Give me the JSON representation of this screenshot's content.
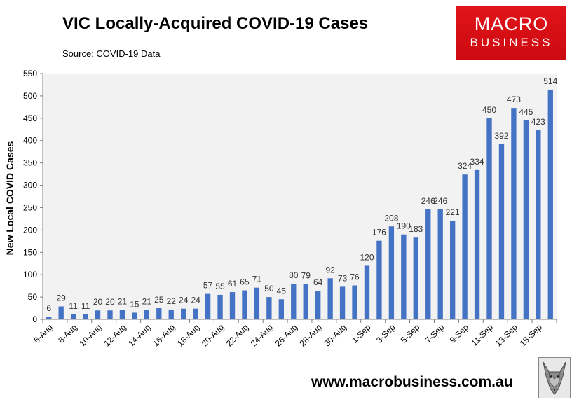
{
  "header": {
    "title": "VIC Locally-Acquired COVID-19 Cases",
    "source": "Source: COVID-19 Data"
  },
  "logo": {
    "line1": "MACRO",
    "line2": "BUSINESS"
  },
  "footer": {
    "website": "www.macrobusiness.com.au"
  },
  "colors": {
    "bar": "#4472c4",
    "plot_bg": "#f2f2f2",
    "logo_bg": "#e0141a"
  },
  "chart_data": {
    "type": "bar",
    "title": "VIC Locally-Acquired COVID-19 Cases",
    "ylabel": "New Local COVID Cases",
    "xlabel": "",
    "ylim": [
      0,
      550
    ],
    "yticks": [
      0,
      50,
      100,
      150,
      200,
      250,
      300,
      350,
      400,
      450,
      500,
      550
    ],
    "categories": [
      "6-Aug",
      "7-Aug",
      "8-Aug",
      "9-Aug",
      "10-Aug",
      "11-Aug",
      "12-Aug",
      "13-Aug",
      "14-Aug",
      "15-Aug",
      "16-Aug",
      "17-Aug",
      "18-Aug",
      "19-Aug",
      "20-Aug",
      "21-Aug",
      "22-Aug",
      "23-Aug",
      "24-Aug",
      "25-Aug",
      "26-Aug",
      "27-Aug",
      "28-Aug",
      "29-Aug",
      "30-Aug",
      "31-Aug",
      "1-Sep",
      "2-Sep",
      "3-Sep",
      "4-Sep",
      "5-Sep",
      "6-Sep",
      "7-Sep",
      "8-Sep",
      "9-Sep",
      "10-Sep",
      "11-Sep",
      "12-Sep",
      "13-Sep",
      "14-Sep",
      "15-Sep",
      "16-Sep"
    ],
    "tick_labels": [
      "6-Aug",
      "8-Aug",
      "10-Aug",
      "12-Aug",
      "14-Aug",
      "16-Aug",
      "18-Aug",
      "20-Aug",
      "22-Aug",
      "24-Aug",
      "26-Aug",
      "28-Aug",
      "30-Aug",
      "1-Sep",
      "3-Sep",
      "5-Sep",
      "7-Sep",
      "9-Sep",
      "11-Sep",
      "13-Sep",
      "15-Sep"
    ],
    "values": [
      6,
      29,
      11,
      11,
      20,
      20,
      21,
      15,
      21,
      25,
      22,
      24,
      24,
      57,
      55,
      61,
      65,
      71,
      50,
      45,
      80,
      79,
      64,
      92,
      73,
      76,
      120,
      176,
      208,
      190,
      183,
      246,
      246,
      221,
      324,
      334,
      450,
      392,
      473,
      445,
      423,
      514
    ],
    "data_labels": [
      "6",
      "29",
      "11",
      "11",
      "20",
      "20",
      "21",
      "15",
      "21",
      "25",
      "22",
      "24",
      "24",
      "57",
      "55",
      "61",
      "65",
      "71",
      "50",
      "45",
      "80",
      "79",
      "64",
      "92",
      "73",
      "76",
      "120",
      "176",
      "208",
      "190",
      "183",
      "246",
      "246",
      "221",
      "324",
      "334",
      "450",
      "392",
      "473",
      "445",
      "423",
      "514"
    ],
    "grid": false,
    "legend": "none"
  }
}
